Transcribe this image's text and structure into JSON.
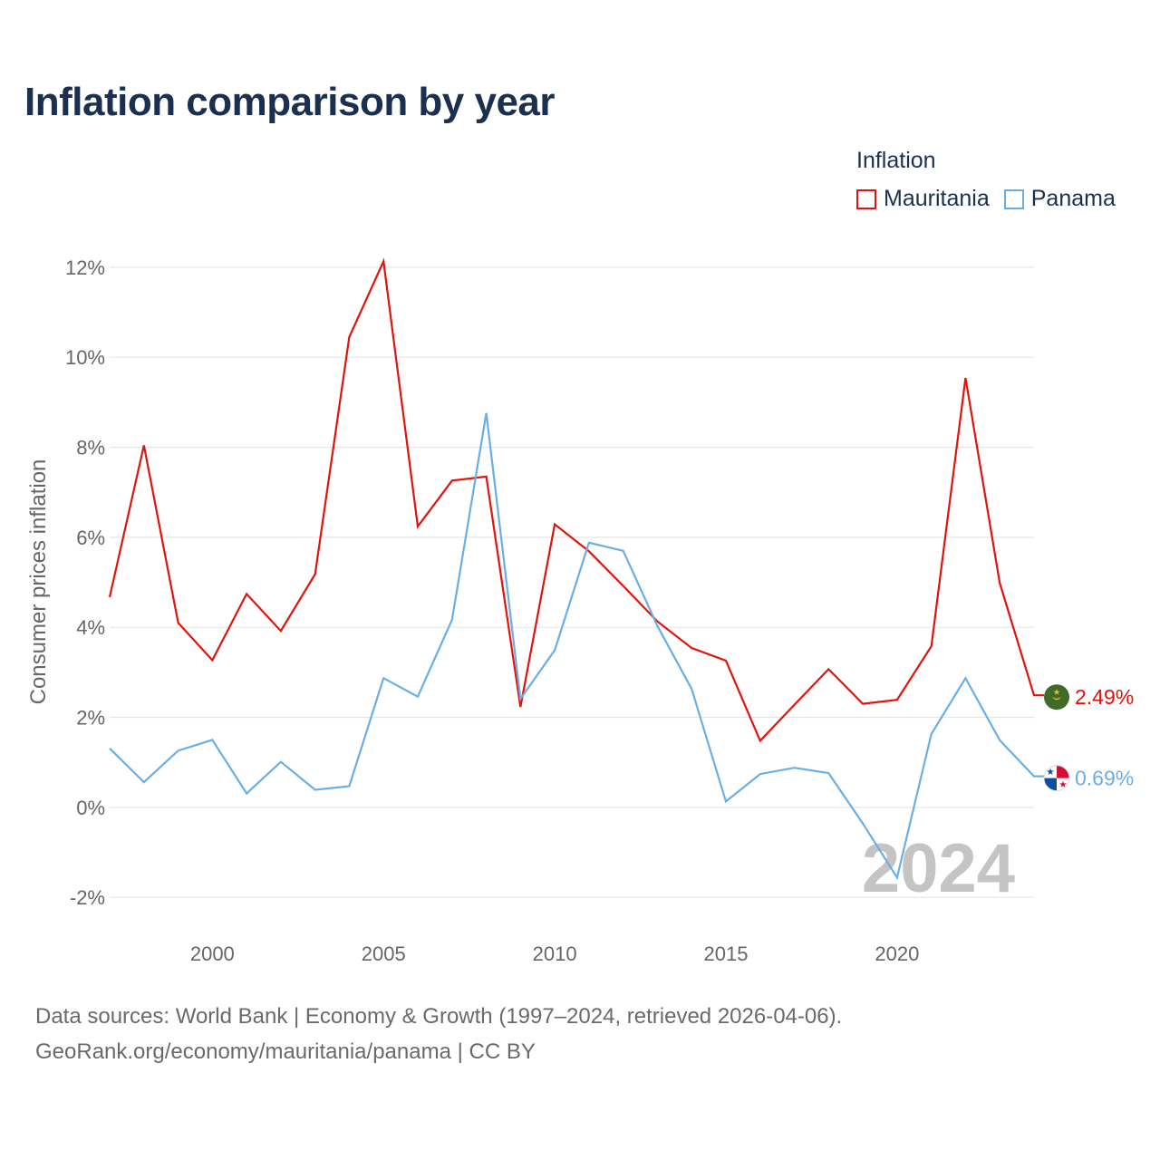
{
  "title": "Inflation comparison by year",
  "legend": {
    "title": "Inflation",
    "items": [
      {
        "label": "Mauritania",
        "color": "#e3120b"
      },
      {
        "label": "Panama",
        "color": "#6aaee6"
      }
    ]
  },
  "footer": {
    "line1": "Data sources: World Bank | Economy & Growth (1997–2024, retrieved 2026-04-06).",
    "line2": "GeoRank.org/economy/mauritania/panama | CC BY"
  },
  "chart_data": {
    "type": "line",
    "title": "Inflation comparison by year",
    "xlabel": "",
    "ylabel": "Consumer prices inflation",
    "xlim": [
      1997,
      2024
    ],
    "ylim": [
      -2.6,
      12.4
    ],
    "x_ticks": [
      2000,
      2005,
      2010,
      2015,
      2020
    ],
    "y_ticks": [
      -2,
      0,
      2,
      4,
      6,
      8,
      10,
      12
    ],
    "y_tick_labels": [
      "-2%",
      "0%",
      "2%",
      "4%",
      "6%",
      "8%",
      "10%",
      "12%"
    ],
    "x": [
      1997,
      1998,
      1999,
      2000,
      2001,
      2002,
      2003,
      2004,
      2005,
      2006,
      2007,
      2008,
      2009,
      2010,
      2011,
      2012,
      2013,
      2014,
      2015,
      2016,
      2017,
      2018,
      2019,
      2020,
      2021,
      2022,
      2023,
      2024
    ],
    "series": [
      {
        "name": "Mauritania",
        "color": "#e3120b",
        "end_label": "2.49%",
        "values": [
          4.67,
          8.04,
          4.1,
          3.27,
          4.74,
          3.92,
          5.18,
          10.45,
          12.13,
          6.24,
          7.26,
          7.35,
          2.23,
          6.29,
          5.69,
          4.92,
          4.13,
          3.54,
          3.26,
          1.48,
          2.28,
          3.07,
          2.3,
          2.39,
          3.58,
          9.54,
          4.98,
          2.49
        ]
      },
      {
        "name": "Panama",
        "color": "#6aaee6",
        "end_label": "0.69%",
        "values": [
          1.31,
          0.56,
          1.26,
          1.5,
          0.31,
          1.01,
          0.39,
          0.47,
          2.87,
          2.46,
          4.17,
          8.76,
          2.41,
          3.49,
          5.88,
          5.7,
          4.03,
          2.63,
          0.13,
          0.74,
          0.88,
          0.76,
          -0.36,
          -1.56,
          1.63,
          2.87,
          1.49,
          0.69
        ]
      }
    ],
    "year_mark": "2024"
  }
}
